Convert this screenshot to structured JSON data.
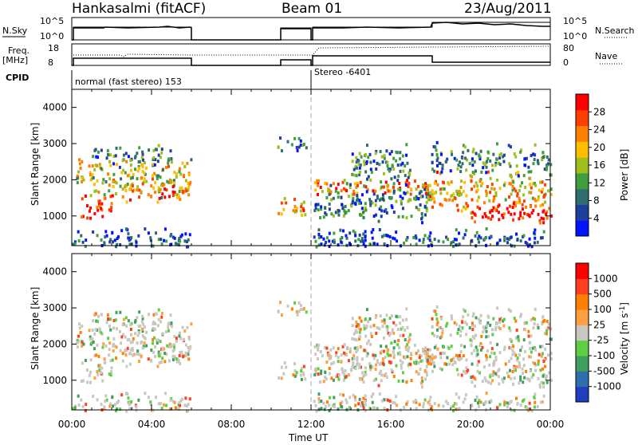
{
  "header": {
    "station": "Hankasalmi (fitACF)",
    "beam": "Beam 01",
    "date": "23/Aug/2011"
  },
  "top_panels": {
    "nsky_label": "N.Sky",
    "nsky_ticks": [
      "10^5",
      "10^0"
    ],
    "nsearch_label": "N.Search",
    "nsearch_ticks": [
      "10^5",
      "10^0"
    ],
    "freq_label": "Freq.",
    "freq_unit": "[MHz]",
    "freq_ticks": [
      "18",
      "8"
    ],
    "nave_label": "Nave",
    "nave_ticks": [
      "80",
      "0"
    ],
    "cpid_label": "CPID",
    "cpid_modes": [
      {
        "text": "normal (fast stereo) 153"
      },
      {
        "text": "Stereo -6401"
      }
    ]
  },
  "chart_data": [
    {
      "type": "heatmap",
      "panel": "power",
      "ylabel": "Slant Range [km]",
      "yticks": [
        "4000",
        "3000",
        "2000",
        "1000"
      ],
      "ylim": [
        180,
        4500
      ],
      "xlim": [
        0,
        24
      ],
      "colorbar_label": "Power [dB]",
      "colorbar_ticks": [
        "28",
        "24",
        "20",
        "16",
        "12",
        "8",
        "4"
      ],
      "colors": [
        "#0014ff",
        "#1f3f9f",
        "#2f6f6f",
        "#3f9f3f",
        "#9fbf1f",
        "#ffbf00",
        "#ff7f00",
        "#ff3f00",
        "#ff0000"
      ]
    },
    {
      "type": "heatmap",
      "panel": "velocity",
      "ylabel": "Slant Range [km]",
      "yticks": [
        "4000",
        "3000",
        "2000",
        "1000"
      ],
      "ylim": [
        180,
        4500
      ],
      "xlim": [
        0,
        24
      ],
      "colorbar_label": "Velocity [m s",
      "colorbar_sup": "-1",
      "colorbar_suffix": "]",
      "colorbar_ticks": [
        "1000",
        "500",
        "100",
        "25",
        "-25",
        "-100",
        "-500",
        "-1000"
      ],
      "colors": [
        "#1f3fbf",
        "#2f6faf",
        "#3f9f5f",
        "#5fcf3f",
        "#c8c8c0",
        "#ff9f3f",
        "#ff7f00",
        "#ff3f1f",
        "#ff0000"
      ],
      "ground_scatter_color": "#c8c8c0"
    }
  ],
  "xaxis": {
    "ticks": [
      "00:00",
      "04:00",
      "08:00",
      "12:00",
      "16:00",
      "20:00",
      "00:00"
    ],
    "label": "Time UT"
  }
}
